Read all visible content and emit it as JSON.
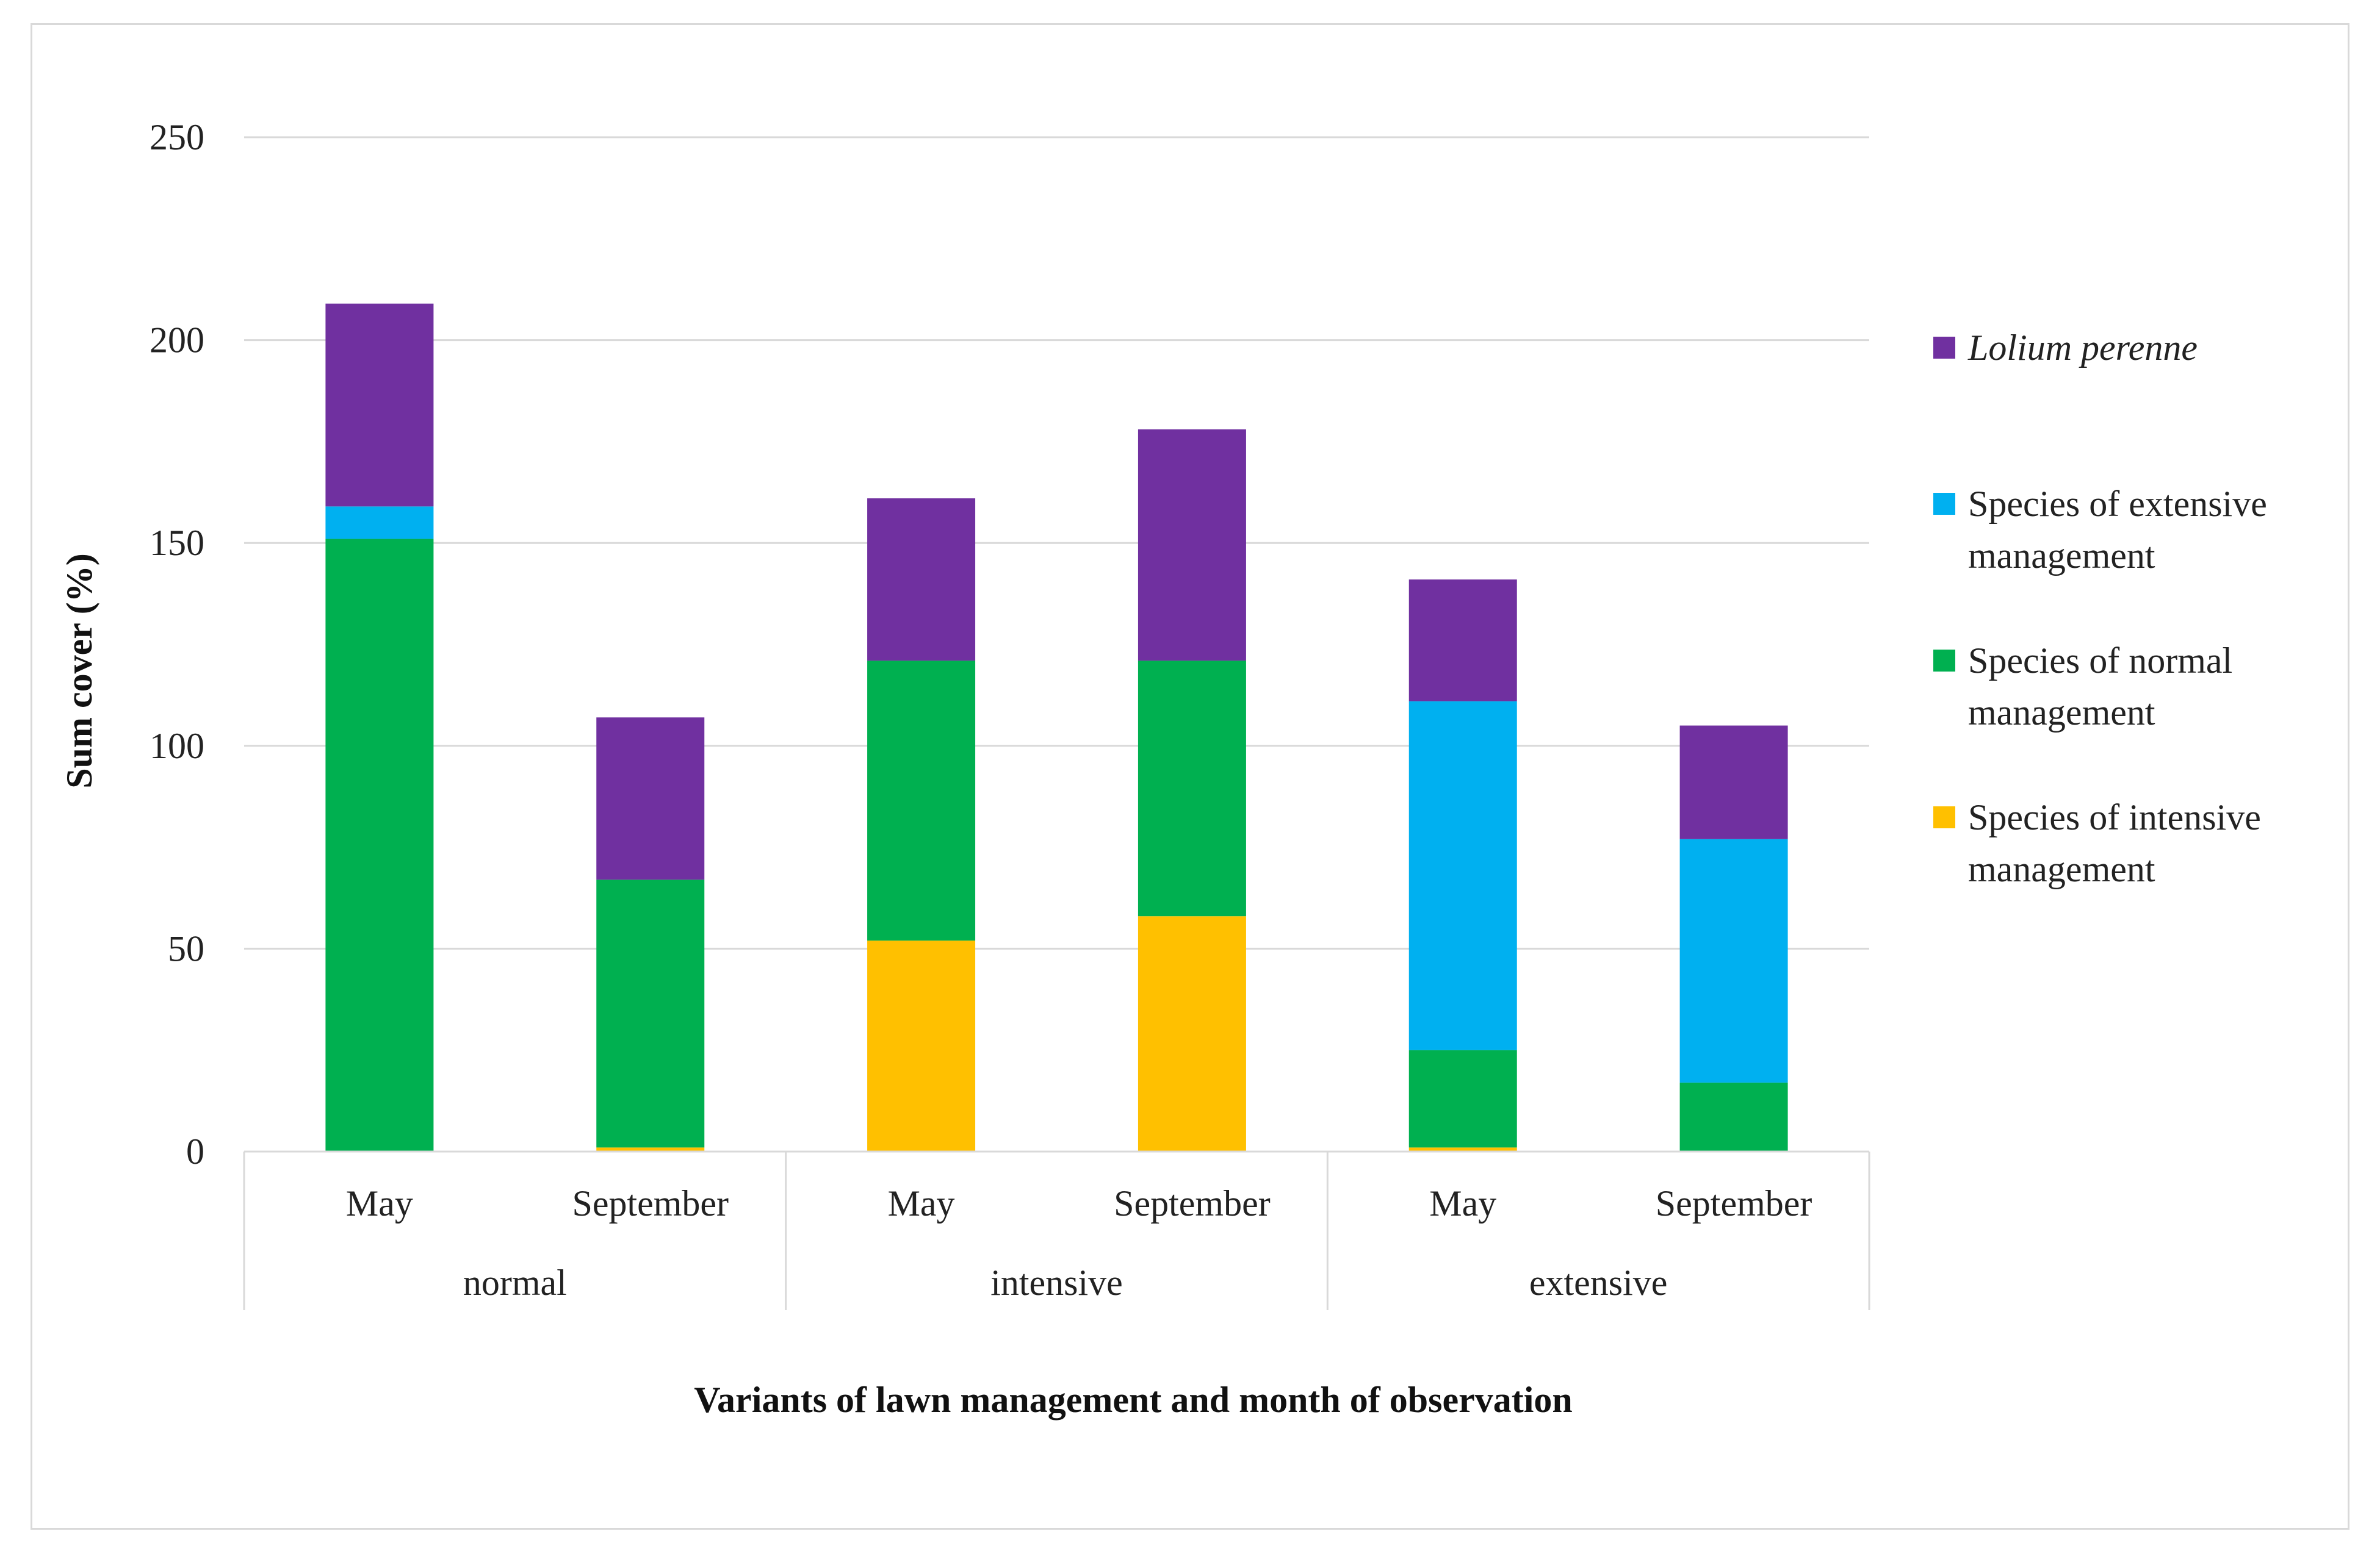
{
  "chart_data": {
    "type": "bar",
    "stacked": true,
    "categories": [
      "May",
      "September",
      "May",
      "September",
      "May",
      "September"
    ],
    "groups": [
      {
        "label": "normal",
        "span": 2
      },
      {
        "label": "intensive",
        "span": 2
      },
      {
        "label": "extensive",
        "span": 2
      }
    ],
    "series": [
      {
        "name": "Species of intensive management",
        "color": "#FFC000",
        "values": [
          0,
          1,
          52,
          58,
          1,
          0
        ]
      },
      {
        "name": "Species of normal management",
        "color": "#00B050",
        "values": [
          151,
          66,
          69,
          63,
          24,
          17
        ]
      },
      {
        "name": "Species of extensive management",
        "color": "#00B0F0",
        "values": [
          8,
          0,
          0,
          0,
          86,
          60
        ]
      },
      {
        "name": "Lolium perenne",
        "color": "#7030A0",
        "values": [
          50,
          40,
          40,
          57,
          30,
          28
        ]
      }
    ],
    "legend": {
      "position": "right",
      "entries": [
        {
          "label": "Lolium perenne",
          "color": "#7030A0",
          "italic": true,
          "lines": [
            "Lolium perenne"
          ]
        },
        {
          "label": "Species of extensive management",
          "color": "#00B0F0",
          "italic": false,
          "lines": [
            "Species of extensive",
            "management"
          ]
        },
        {
          "label": "Species of normal management",
          "color": "#00B050",
          "italic": false,
          "lines": [
            "Species of normal",
            "management"
          ]
        },
        {
          "label": "Species of intensive management",
          "color": "#FFC000",
          "italic": false,
          "lines": [
            "Species of intensive",
            "management"
          ]
        }
      ]
    },
    "xlabel": "Variants of lawn management and month of observation",
    "ylabel": "Sum cover (%)",
    "ylim": [
      0,
      250
    ],
    "yticks": [
      "0",
      "50",
      "100",
      "150",
      "200",
      "250"
    ],
    "grid": true,
    "colors": {
      "grid": "#d9d9d9",
      "axis": "#d9d9d9",
      "frame": "#d9d9d9"
    }
  }
}
